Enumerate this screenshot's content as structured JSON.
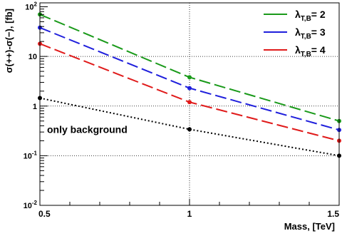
{
  "chart_data": {
    "type": "line",
    "xlabel": "Mass, [TeV]",
    "ylabel": "σ(++)-σ(−), [fb]",
    "xlim": [
      0.5,
      1.5
    ],
    "ylim": [
      0.01,
      120
    ],
    "yscale": "log",
    "grid": true,
    "x_ticks": [
      {
        "value": 0.5,
        "label": "0.5"
      },
      {
        "value": 1.0,
        "label": "1"
      },
      {
        "value": 1.5,
        "label": "1.5"
      }
    ],
    "y_ticks": [
      {
        "value": 100,
        "mant": "10",
        "exp": "2"
      },
      {
        "value": 10,
        "mant": "10",
        "exp": ""
      },
      {
        "value": 1,
        "mant": "1",
        "exp": ""
      },
      {
        "value": 0.1,
        "mant": "10",
        "exp": "-1"
      },
      {
        "value": 0.01,
        "mant": "10",
        "exp": "-2"
      }
    ],
    "legend_position": "top-right",
    "series": [
      {
        "key": "lam2",
        "name": "λ",
        "sub": "T,B",
        "suffix": "= 2",
        "color": "#1a9a1a",
        "dash": "dashed",
        "x": [
          0.5,
          1.0,
          1.5
        ],
        "y": [
          70,
          3.8,
          0.5
        ]
      },
      {
        "key": "lam3",
        "name": "λ",
        "sub": "T,B",
        "suffix": "= 3",
        "color": "#1f1fdc",
        "dash": "dashed",
        "x": [
          0.5,
          1.0,
          1.5
        ],
        "y": [
          38,
          2.3,
          0.33
        ]
      },
      {
        "key": "lam4",
        "name": "λ",
        "sub": "T,B",
        "suffix": "= 4",
        "color": "#e01b1b",
        "dash": "dashed",
        "x": [
          0.5,
          1.0,
          1.5
        ],
        "y": [
          18,
          1.2,
          0.2
        ]
      },
      {
        "key": "bkg",
        "color": "#000000",
        "dash": "dotted",
        "x": [
          0.5,
          1.0,
          1.5
        ],
        "y": [
          1.45,
          0.34,
          0.1
        ]
      }
    ],
    "annotations": [
      {
        "text": "only background",
        "x": 0.5,
        "y": 0.34
      }
    ]
  }
}
